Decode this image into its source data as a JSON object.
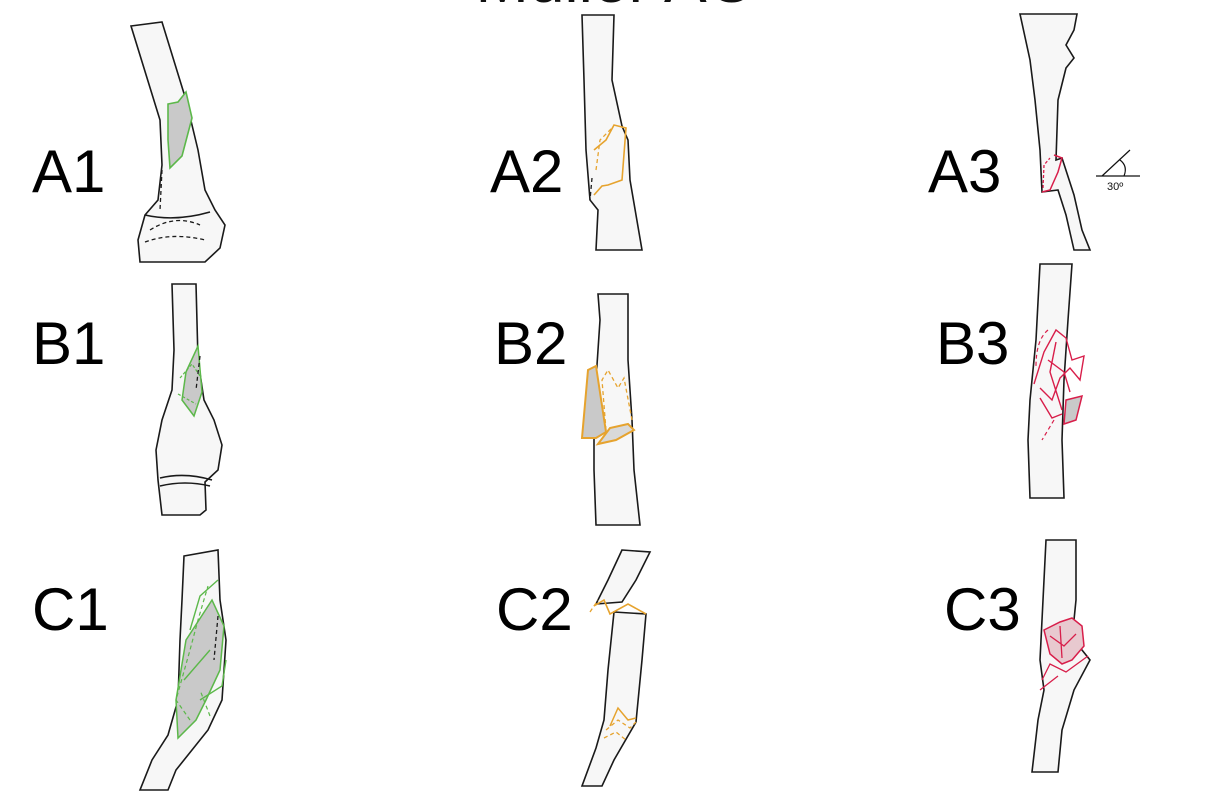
{
  "title": "Müller AO",
  "colors": {
    "green": "#5cb84a",
    "orange": "#e6a32e",
    "red": "#d81e4a",
    "fragment_fill": "#c9c9c9"
  },
  "labels": {
    "a1": "A1",
    "a2": "A2",
    "a3": "A3",
    "b1": "B1",
    "b2": "B2",
    "b3": "B3",
    "c1": "C1",
    "c2": "C2",
    "c3": "C3"
  },
  "angle": "30º"
}
